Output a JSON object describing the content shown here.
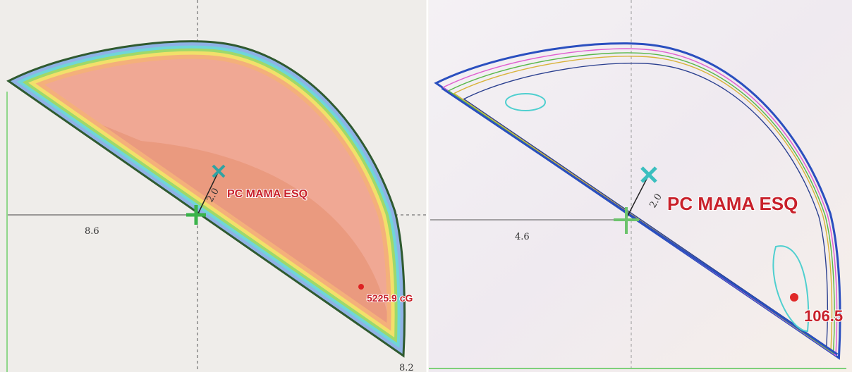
{
  "left_panel": {
    "distance_label": "8.6",
    "structure_label": "PC MAMA ESQ",
    "depth_label": "2.0",
    "dose_label": "5225.9 cG",
    "edge_label": "8.2"
  },
  "right_panel": {
    "distance_label": "4.6",
    "structure_label": "PC MAMA ESQ",
    "depth_label": "2.0",
    "dose_label": "106.5"
  }
}
